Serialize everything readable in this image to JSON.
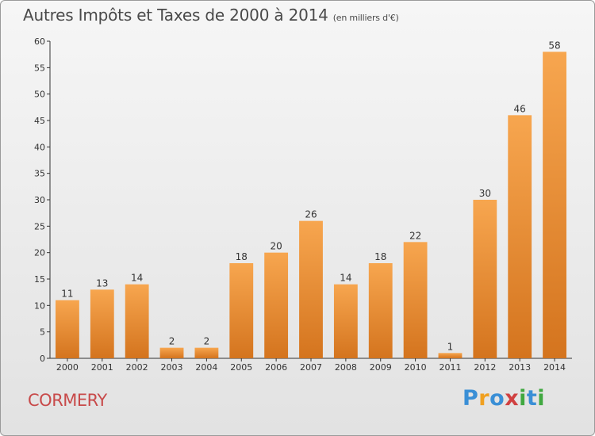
{
  "header": {
    "title": "Autres Impôts et Taxes de 2000 à 2014",
    "unit": "(en milliers d'€)"
  },
  "footer": {
    "commune": "CORMERY",
    "brand_letters": [
      {
        "ch": "P",
        "color": "#3a8fd6"
      },
      {
        "ch": "r",
        "color": "#f0a020"
      },
      {
        "ch": "o",
        "color": "#3a8fd6"
      },
      {
        "ch": "x",
        "color": "#d04040"
      },
      {
        "ch": "i",
        "color": "#40a840"
      },
      {
        "ch": "t",
        "color": "#3a8fd6"
      },
      {
        "ch": "i",
        "color": "#40a840"
      }
    ]
  },
  "chart_data": {
    "type": "bar",
    "title": "Autres Impôts et Taxes de 2000 à 2014",
    "subtitle": "(en milliers d'€)",
    "xlabel": "",
    "ylabel": "",
    "categories": [
      "2000",
      "2001",
      "2002",
      "2003",
      "2004",
      "2005",
      "2006",
      "2007",
      "2008",
      "2009",
      "2010",
      "2011",
      "2012",
      "2013",
      "2014"
    ],
    "values": [
      11,
      13,
      14,
      2,
      2,
      18,
      20,
      26,
      14,
      18,
      22,
      1,
      30,
      46,
      58
    ],
    "ylim": [
      0,
      60
    ],
    "yticks": [
      0,
      5,
      10,
      15,
      20,
      25,
      30,
      35,
      40,
      45,
      50,
      55,
      60
    ],
    "grid": false,
    "colors": {
      "bar_top": "#f7a64f",
      "bar_bottom": "#d4741e",
      "axis": "#333333"
    }
  }
}
